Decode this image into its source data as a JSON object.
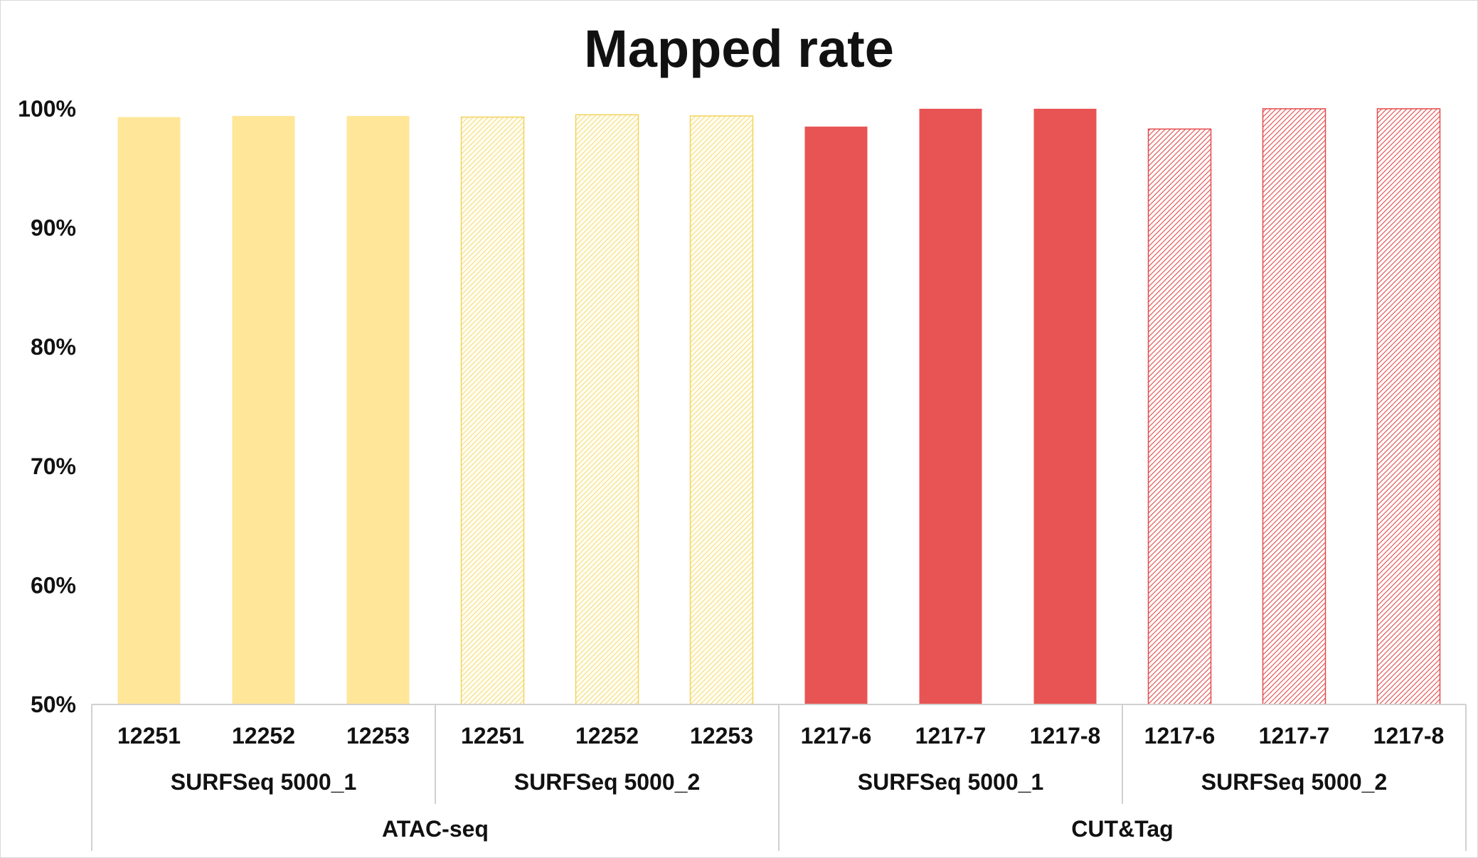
{
  "chart_data": {
    "type": "bar",
    "title": "Mapped rate",
    "ylim": [
      0.5,
      1.0
    ],
    "ytick_labels": [
      "50%",
      "60%",
      "70%",
      "80%",
      "90%",
      "100%"
    ],
    "yticks": [
      0.5,
      0.6,
      0.7,
      0.8,
      0.9,
      1.0
    ],
    "grid": false,
    "legend": "none",
    "categories": [
      "12251",
      "12252",
      "12253",
      "12251",
      "12252",
      "12253",
      "1217-6",
      "1217-7",
      "1217-8",
      "1217-6",
      "1217-7",
      "1217-8"
    ],
    "values": [
      0.993,
      0.994,
      0.994,
      0.993,
      0.995,
      0.994,
      0.985,
      1.0,
      1.0,
      0.983,
      1.0,
      1.0
    ],
    "bar_styles": [
      "solid",
      "solid",
      "solid",
      "hatched",
      "hatched",
      "hatched",
      "solid",
      "solid",
      "solid",
      "hatched",
      "hatched",
      "hatched"
    ],
    "bar_colors": [
      "#FFE699",
      "#FFE699",
      "#FFE699",
      "#FFE699",
      "#FFE699",
      "#FFE699",
      "#E85454",
      "#E85454",
      "#E85454",
      "#E85454",
      "#E85454",
      "#E85454"
    ],
    "subgroups": [
      {
        "label": "SURFSeq 5000_1",
        "count": 3
      },
      {
        "label": "SURFSeq 5000_2",
        "count": 3
      },
      {
        "label": "SURFSeq 5000_1",
        "count": 3
      },
      {
        "label": "SURFSeq 5000_2",
        "count": 3
      }
    ],
    "groups": [
      {
        "label": "ATAC-seq",
        "count": 6
      },
      {
        "label": "CUT&Tag",
        "count": 6
      }
    ]
  }
}
